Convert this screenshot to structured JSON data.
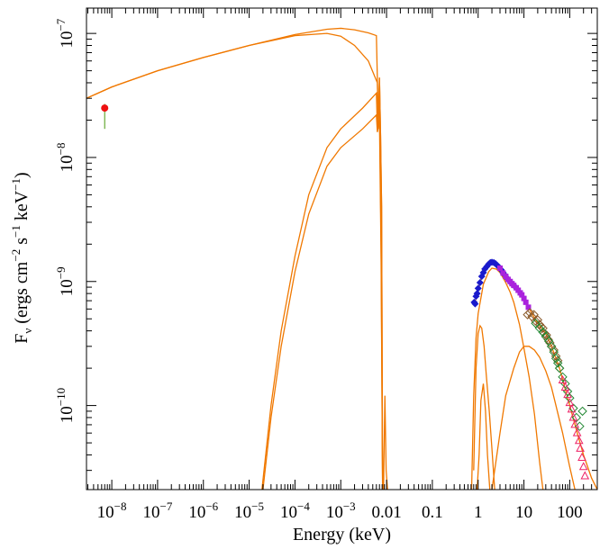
{
  "chart_data": {
    "type": "scatter",
    "title": "",
    "xlabel": "Energy (keV)",
    "ylabel": "F_ν (ergs cm⁻² s⁻¹ keV⁻¹)",
    "ylabel_parts": {
      "main": "F",
      "sub": "ν",
      "units_prefix": "(ergs cm",
      "units_exp1": "−2",
      "units_mid": " s",
      "units_exp2": "−1",
      "units_mid2": " keV",
      "units_exp3": "−1",
      "units_suffix": ")"
    },
    "xscale": "log",
    "yscale": "log",
    "xlim": [
      2.8e-09,
      400
    ],
    "ylim": [
      2.1e-11,
      1.6e-07
    ],
    "x_ticks": [
      {
        "value": 1e-08,
        "base": "10",
        "exp": "−8"
      },
      {
        "value": 1e-07,
        "base": "10",
        "exp": "−7"
      },
      {
        "value": 1e-06,
        "base": "10",
        "exp": "−6"
      },
      {
        "value": 1e-05,
        "base": "10",
        "exp": "−5"
      },
      {
        "value": 0.0001,
        "base": "10",
        "exp": "−4"
      },
      {
        "value": 0.001,
        "base": "10",
        "exp": "−3"
      },
      {
        "value": 0.01,
        "label": "0.01"
      },
      {
        "value": 0.1,
        "label": "0.1"
      },
      {
        "value": 1,
        "label": "1"
      },
      {
        "value": 10,
        "label": "10"
      },
      {
        "value": 100,
        "label": "100"
      }
    ],
    "y_ticks": [
      {
        "value": 1e-07,
        "base": "10",
        "exp": "−7"
      },
      {
        "value": 1e-08,
        "base": "10",
        "exp": "−8"
      },
      {
        "value": 1e-09,
        "base": "10",
        "exp": "−9"
      },
      {
        "value": 1e-10,
        "base": "10",
        "exp": "−10"
      }
    ],
    "model_color": "#f07800",
    "series": [
      {
        "kind": "model_total",
        "color": "#f07800",
        "points": [
          [
            2.8e-09,
            3e-08
          ],
          [
            5e-09,
            3.3e-08
          ],
          [
            1e-08,
            3.7e-08
          ],
          [
            1e-07,
            5e-08
          ],
          [
            1e-06,
            6.4e-08
          ],
          [
            1e-05,
            8e-08
          ],
          [
            0.0001,
            9.8e-08
          ],
          [
            0.0005,
            1.08e-07
          ],
          [
            0.001,
            1.1e-07
          ],
          [
            0.002,
            1.07e-07
          ],
          [
            0.004,
            1.01e-07
          ],
          [
            0.006,
            9.6e-08
          ],
          [
            0.0063,
            4.3e-08
          ],
          [
            0.0066,
            1.7e-08
          ],
          [
            0.007,
            4.4e-08
          ],
          [
            0.0074,
            1.5e-08
          ],
          [
            0.0078,
            4e-09
          ],
          [
            0.0082,
            2e-11
          ]
        ]
      },
      {
        "kind": "model_component",
        "color": "#f07800",
        "points": [
          [
            2.8e-09,
            3e-08
          ],
          [
            1e-08,
            3.7e-08
          ],
          [
            1e-07,
            5e-08
          ],
          [
            1e-06,
            6.4e-08
          ],
          [
            1e-05,
            8e-08
          ],
          [
            0.0001,
            9.6e-08
          ],
          [
            0.0005,
            1e-07
          ],
          [
            0.001,
            9.5e-08
          ],
          [
            0.002,
            8e-08
          ],
          [
            0.004,
            6e-08
          ],
          [
            0.0058,
            4.3e-08
          ],
          [
            0.0063,
            4e-08
          ],
          [
            0.0066,
            1.7e-08
          ],
          [
            0.007,
            4.4e-08
          ],
          [
            0.0074,
            1.5e-08
          ],
          [
            0.0078,
            4e-09
          ],
          [
            0.0082,
            2e-11
          ]
        ]
      },
      {
        "kind": "model_component",
        "color": "#f07800",
        "points": [
          [
            1.9e-05,
            2.1e-11
          ],
          [
            3e-05,
            1e-10
          ],
          [
            5e-05,
            4e-10
          ],
          [
            0.0001,
            1.6e-09
          ],
          [
            0.0002,
            5e-09
          ],
          [
            0.0005,
            1.2e-08
          ],
          [
            0.001,
            1.7e-08
          ],
          [
            0.003,
            2.5e-08
          ],
          [
            0.006,
            3.3e-08
          ],
          [
            0.0063,
            1.7e-08
          ],
          [
            0.007,
            3e-08
          ],
          [
            0.0076,
            2e-09
          ],
          [
            0.0082,
            2e-11
          ]
        ]
      },
      {
        "kind": "model_component",
        "color": "#f07800",
        "points": [
          [
            2e-05,
            2.1e-11
          ],
          [
            3e-05,
            8e-11
          ],
          [
            5e-05,
            3e-10
          ],
          [
            0.0001,
            1.2e-09
          ],
          [
            0.0002,
            3.5e-09
          ],
          [
            0.0005,
            8.5e-09
          ],
          [
            0.001,
            1.2e-08
          ],
          [
            0.003,
            1.7e-08
          ],
          [
            0.006,
            2.2e-08
          ],
          [
            0.0063,
            1.6e-08
          ],
          [
            0.007,
            2e-08
          ],
          [
            0.0076,
            1.5e-09
          ],
          [
            0.0082,
            2e-11
          ]
        ]
      },
      {
        "kind": "model_component",
        "color": "#f07800",
        "points": [
          [
            0.0086,
            2.1e-11
          ],
          [
            0.0092,
            1.2e-10
          ],
          [
            0.0098,
            3e-11
          ],
          [
            0.0105,
            2.1e-11
          ]
        ]
      },
      {
        "kind": "model_total",
        "color": "#f07800",
        "points": [
          [
            0.8,
            6.8e-10
          ],
          [
            0.9,
            7.2e-10
          ],
          [
            1.0,
            8.7e-10
          ],
          [
            1.2,
            1.1e-09
          ],
          [
            1.5,
            1.3e-09
          ],
          [
            2.0,
            1.42e-09
          ],
          [
            2.5,
            1.4e-09
          ],
          [
            3.0,
            1.3e-09
          ],
          [
            4.0,
            1.12e-09
          ],
          [
            5.0,
            1e-09
          ],
          [
            6.0,
            9.3e-10
          ],
          [
            8.0,
            8.4e-10
          ],
          [
            10.0,
            7.3e-10
          ],
          [
            15.0,
            5.5e-10
          ],
          [
            20.0,
            4.6e-10
          ],
          [
            30.0,
            3.8e-10
          ],
          [
            40.0,
            3e-10
          ],
          [
            60.0,
            2e-10
          ],
          [
            80.0,
            1.35e-10
          ],
          [
            100.0,
            1e-10
          ],
          [
            150.0,
            5.8e-11
          ],
          [
            200.0,
            4e-11
          ],
          [
            300.0,
            2.6e-11
          ],
          [
            400.0,
            2.1e-11
          ]
        ]
      },
      {
        "kind": "model_component",
        "color": "#f07800",
        "points": [
          [
            0.72,
            2.1e-11
          ],
          [
            0.8,
            1.2e-10
          ],
          [
            0.9,
            3.5e-10
          ],
          [
            1.0,
            5.5e-10
          ],
          [
            1.3,
            9.5e-10
          ],
          [
            1.7,
            1.2e-09
          ],
          [
            2.0,
            1.28e-09
          ],
          [
            2.5,
            1.26e-09
          ],
          [
            3.0,
            1.18e-09
          ],
          [
            4.0,
            9.8e-10
          ],
          [
            5.0,
            8.2e-10
          ],
          [
            6.0,
            6.8e-10
          ],
          [
            8.0,
            4.5e-10
          ],
          [
            10.0,
            2.9e-10
          ],
          [
            13.0,
            1.7e-10
          ],
          [
            17.0,
            8.5e-11
          ],
          [
            22.0,
            3.5e-11
          ],
          [
            26.0,
            2.1e-11
          ]
        ]
      },
      {
        "kind": "model_component",
        "color": "#f07800",
        "points": [
          [
            0.8,
            3e-11
          ],
          [
            0.9,
            2e-10
          ],
          [
            1.0,
            3.8e-10
          ],
          [
            1.1,
            4.4e-10
          ],
          [
            1.2,
            4.2e-10
          ],
          [
            1.35,
            3e-10
          ],
          [
            1.5,
            1.8e-10
          ],
          [
            1.75,
            9e-11
          ],
          [
            2.0,
            4.5e-11
          ],
          [
            2.3,
            2.1e-11
          ]
        ]
      },
      {
        "kind": "model_component",
        "color": "#f07800",
        "points": [
          [
            0.95,
            2.1e-11
          ],
          [
            1.05,
            4e-11
          ],
          [
            1.15,
            1.1e-10
          ],
          [
            1.3,
            1.5e-10
          ],
          [
            1.45,
            9e-11
          ],
          [
            1.6,
            4e-11
          ],
          [
            1.8,
            2.1e-11
          ]
        ]
      },
      {
        "kind": "model_component",
        "color": "#f07800",
        "points": [
          [
            2.0,
            2.1e-11
          ],
          [
            3.0,
            6e-11
          ],
          [
            4.0,
            1.2e-10
          ],
          [
            6.0,
            2e-10
          ],
          [
            8.0,
            2.7e-10
          ],
          [
            10.0,
            3e-10
          ],
          [
            13.0,
            3e-10
          ],
          [
            17.0,
            2.8e-10
          ],
          [
            22.0,
            2.45e-10
          ],
          [
            30.0,
            1.9e-10
          ],
          [
            40.0,
            1.4e-10
          ],
          [
            50.0,
            1e-10
          ],
          [
            70.0,
            6e-11
          ],
          [
            100.0,
            3.2e-11
          ],
          [
            130.0,
            2.1e-11
          ]
        ]
      },
      {
        "kind": "data_point",
        "marker": "circle",
        "color": "#ee1111",
        "errorbar_color": "#66aa33",
        "points": [
          [
            7e-09,
            2.5e-08
          ]
        ],
        "yerr": [
          [
            1.7e-08,
            2.7e-08
          ]
        ]
      },
      {
        "kind": "data_points",
        "marker": "diamond",
        "color": "#1a1acc",
        "points": [
          [
            0.82,
            6.8e-10
          ],
          [
            0.86,
            6.6e-10
          ],
          [
            0.9,
            7.6e-10
          ],
          [
            0.95,
            8e-10
          ],
          [
            1.0,
            8.8e-10
          ],
          [
            1.1,
            9.8e-10
          ],
          [
            1.2,
            1.1e-09
          ],
          [
            1.3,
            1.18e-09
          ],
          [
            1.4,
            1.26e-09
          ],
          [
            1.55,
            1.32e-09
          ],
          [
            1.7,
            1.38e-09
          ],
          [
            1.85,
            1.42e-09
          ],
          [
            2.0,
            1.43e-09
          ],
          [
            2.2,
            1.42e-09
          ],
          [
            2.4,
            1.39e-09
          ],
          [
            2.6,
            1.35e-09
          ],
          [
            2.9,
            1.3e-09
          ],
          [
            3.2,
            1.24e-09
          ],
          [
            3.5,
            1.18e-09
          ],
          [
            3.9,
            1.12e-09
          ],
          [
            4.3,
            1.06e-09
          ],
          [
            4.8,
            1.01e-09
          ],
          [
            5.3,
            9.7e-10
          ],
          [
            6.0,
            9.3e-10
          ]
        ]
      },
      {
        "kind": "data_points",
        "marker": "square",
        "color": "#aa22dd",
        "points": [
          [
            3.0,
            1.28e-09
          ],
          [
            3.5,
            1.17e-09
          ],
          [
            4.0,
            1.1e-09
          ],
          [
            4.5,
            1.04e-09
          ],
          [
            5.0,
            1e-09
          ],
          [
            5.5,
            9.6e-10
          ],
          [
            6.0,
            9.3e-10
          ],
          [
            6.8,
            8.9e-10
          ],
          [
            7.5,
            8.5e-10
          ],
          [
            8.3,
            8.1e-10
          ],
          [
            9.0,
            7.8e-10
          ],
          [
            10.0,
            7.3e-10
          ],
          [
            11.0,
            6.8e-10
          ],
          [
            12.5,
            6.2e-10
          ]
        ]
      },
      {
        "kind": "data_points",
        "marker": "diamond_open",
        "color": "#8a5a2a",
        "points": [
          [
            12.0,
            5.4e-10
          ],
          [
            13.5,
            5.6e-10
          ],
          [
            15.0,
            5.2e-10
          ],
          [
            16.5,
            5.4e-10
          ],
          [
            18.0,
            4.8e-10
          ],
          [
            20.0,
            4.9e-10
          ],
          [
            22.0,
            4.5e-10
          ],
          [
            24.0,
            4.3e-10
          ],
          [
            26.0,
            4.2e-10
          ],
          [
            28.0,
            3.8e-10
          ],
          [
            31.0,
            3.7e-10
          ],
          [
            34.0,
            3.4e-10
          ],
          [
            37.0,
            3.2e-10
          ],
          [
            40.0,
            3e-10
          ],
          [
            45.0,
            2.8e-10
          ],
          [
            50.0,
            2.5e-10
          ],
          [
            55.0,
            2.3e-10
          ],
          [
            60.0,
            2e-10
          ]
        ]
      },
      {
        "kind": "data_points",
        "marker": "diamond_open",
        "color": "#228833",
        "points": [
          [
            18.0,
            4.6e-10
          ],
          [
            22.0,
            4.2e-10
          ],
          [
            26.0,
            3.9e-10
          ],
          [
            30.0,
            3.6e-10
          ],
          [
            35.0,
            3.3e-10
          ],
          [
            40.0,
            3e-10
          ],
          [
            45.0,
            2.7e-10
          ],
          [
            50.0,
            2.4e-10
          ],
          [
            55.0,
            2.2e-10
          ],
          [
            60.0,
            2e-10
          ],
          [
            70.0,
            1.7e-10
          ],
          [
            80.0,
            1.5e-10
          ],
          [
            90.0,
            1.3e-10
          ],
          [
            100.0,
            1.15e-10
          ],
          [
            120.0,
            9.5e-11
          ],
          [
            140.0,
            8e-11
          ],
          [
            165.0,
            6.8e-11
          ],
          [
            190.0,
            9e-11
          ]
        ]
      },
      {
        "kind": "data_points",
        "marker": "triangle_open",
        "color": "#ee2266",
        "points": [
          [
            70.0,
            1.6e-10
          ],
          [
            80.0,
            1.4e-10
          ],
          [
            90.0,
            1.22e-10
          ],
          [
            100.0,
            1.05e-10
          ],
          [
            110.0,
            9.3e-11
          ],
          [
            120.0,
            8e-11
          ],
          [
            130.0,
            7e-11
          ],
          [
            145.0,
            6e-11
          ],
          [
            160.0,
            5.2e-11
          ],
          [
            170.0,
            4.5e-11
          ],
          [
            185.0,
            3.8e-11
          ],
          [
            200.0,
            3.2e-11
          ],
          [
            215.0,
            2.7e-11
          ]
        ]
      }
    ]
  }
}
